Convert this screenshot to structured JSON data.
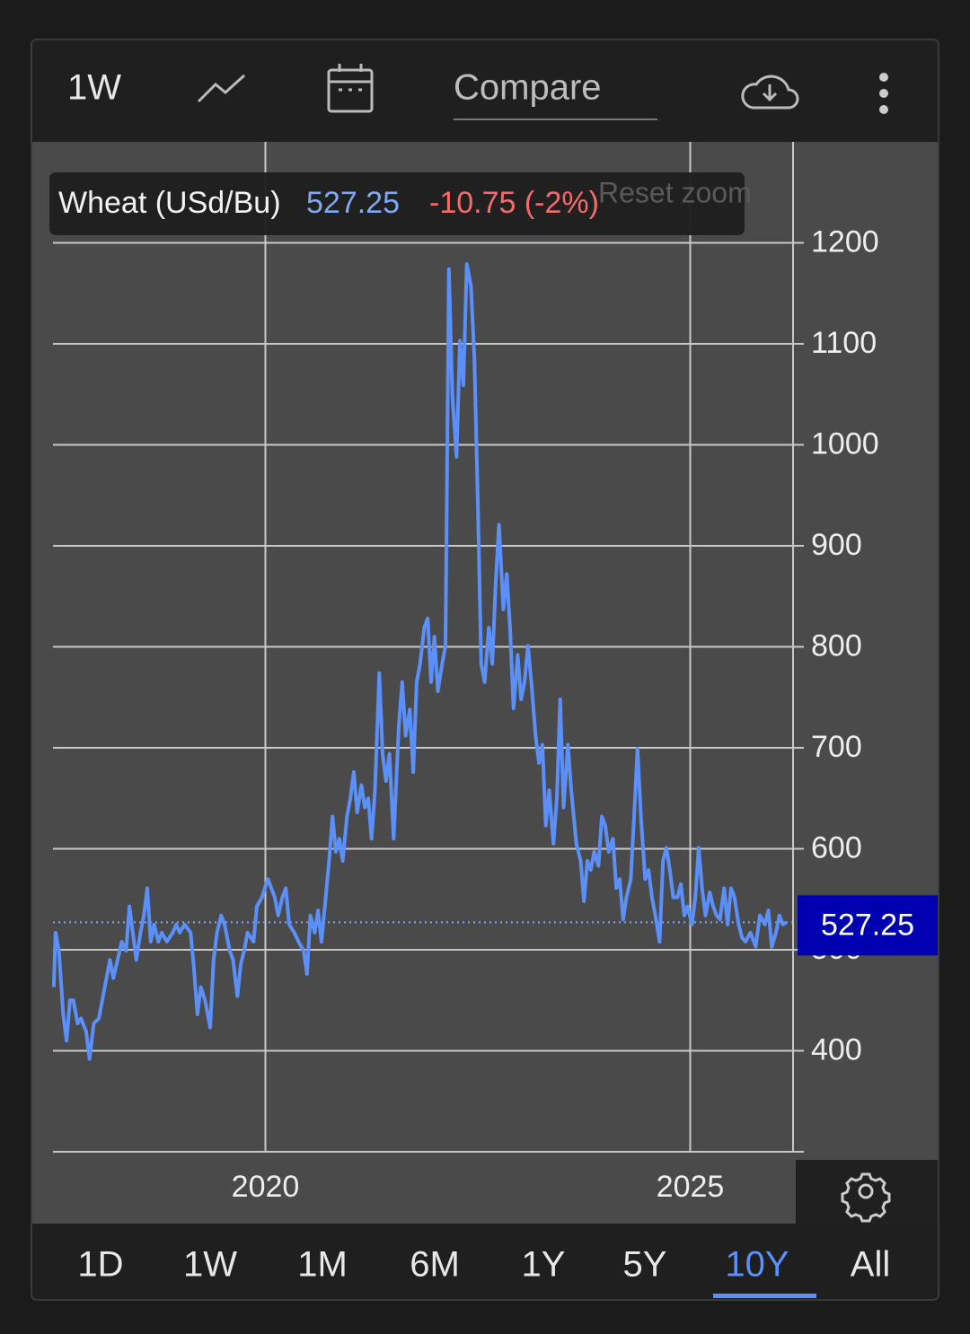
{
  "toolbar": {
    "interval": "1W",
    "compare": "Compare"
  },
  "chart_data": {
    "type": "line",
    "series": [
      {
        "name": "Wheat (USd/Bu)",
        "color": "#5b8ff9",
        "values": [
          463,
          517,
          499,
          436,
          410,
          450,
          450,
          427,
          432,
          419,
          392,
          427,
          432,
          459,
          490,
          472,
          486,
          508,
          499,
          543,
          517,
          490,
          517,
          534,
          561,
          508,
          525,
          508,
          517,
          508,
          517,
          525,
          517,
          525,
          517,
          481,
          436,
          463,
          450,
          423,
          490,
          517,
          534,
          525,
          499,
          490,
          454,
          486,
          499,
          517,
          508,
          543,
          552,
          570,
          561,
          552,
          534,
          552,
          561,
          525,
          517,
          508,
          499,
          476,
          534,
          517,
          539,
          508,
          543,
          588,
          632,
          597,
          610,
          588,
          632,
          650,
          676,
          636,
          663,
          641,
          650,
          610,
          658,
          774,
          694,
          667,
          694,
          610,
          721,
          765,
          712,
          738,
          676,
          765,
          783,
          819,
          828,
          765,
          810,
          756,
          783,
          801,
          1174,
          1050,
          988,
          1103,
          1059,
          1179,
          1157,
          1085,
          943,
          783,
          765,
          819,
          783,
          863,
          921,
          837,
          872,
          819,
          739,
          792,
          748,
          765,
          801,
          765,
          712,
          685,
          703,
          623,
          658,
          605,
          650,
          748,
          641,
          703,
          658,
          605,
          588,
          548,
          588,
          579,
          597,
          583,
          632,
          623,
          597,
          610,
          561,
          570,
          530,
          552,
          570,
          632,
          699,
          632,
          570,
          579,
          552,
          534,
          508,
          588,
          601,
          579,
          552,
          552,
          565,
          534,
          543,
          525,
          552,
          601,
          561,
          534,
          557,
          543,
          534,
          530,
          561,
          525,
          561,
          552,
          525,
          512,
          508,
          517,
          503,
          534,
          525,
          539,
          503,
          517,
          534,
          525,
          527.25
        ]
      }
    ],
    "x": [
      2017.51,
      2017.53,
      2017.57,
      2017.62,
      2017.66,
      2017.7,
      2017.74,
      2017.79,
      2017.83,
      2017.89,
      2017.93,
      2017.98,
      2018.04,
      2018.1,
      2018.17,
      2018.21,
      2018.25,
      2018.31,
      2018.36,
      2018.4,
      2018.44,
      2018.48,
      2018.53,
      2018.57,
      2018.61,
      2018.65,
      2018.69,
      2018.74,
      2018.78,
      2018.84,
      2018.91,
      2018.95,
      2018.99,
      2019.05,
      2019.12,
      2019.16,
      2019.2,
      2019.24,
      2019.29,
      2019.35,
      2019.39,
      2019.43,
      2019.48,
      2019.52,
      2019.58,
      2019.62,
      2019.67,
      2019.71,
      2019.75,
      2019.79,
      2019.86,
      2019.9,
      2019.96,
      2020.03,
      2020.07,
      2020.11,
      2020.15,
      2020.2,
      2020.24,
      2020.28,
      2020.34,
      2020.39,
      2020.45,
      2020.49,
      2020.53,
      2020.58,
      2020.62,
      2020.66,
      2020.7,
      2020.75,
      2020.79,
      2020.83,
      2020.87,
      2020.91,
      2020.96,
      2021.0,
      2021.04,
      2021.08,
      2021.13,
      2021.17,
      2021.21,
      2021.25,
      2021.29,
      2021.34,
      2021.38,
      2021.42,
      2021.46,
      2021.51,
      2021.57,
      2021.61,
      2021.65,
      2021.7,
      2021.74,
      2021.78,
      2021.82,
      2021.87,
      2021.91,
      2021.95,
      2021.99,
      2022.03,
      2022.08,
      2022.12,
      2022.16,
      2022.2,
      2022.25,
      2022.29,
      2022.33,
      2022.37,
      2022.42,
      2022.46,
      2022.5,
      2022.54,
      2022.58,
      2022.63,
      2022.67,
      2022.71,
      2022.75,
      2022.8,
      2022.84,
      2022.88,
      2022.92,
      2022.97,
      2023.01,
      2023.05,
      2023.09,
      2023.13,
      2023.18,
      2023.22,
      2023.26,
      2023.3,
      2023.34,
      2023.39,
      2023.43,
      2023.47,
      2023.51,
      2023.56,
      2023.6,
      2023.66,
      2023.71,
      2023.75,
      2023.79,
      2023.83,
      2023.87,
      2023.92,
      2023.96,
      2024.0,
      2024.04,
      2024.09,
      2024.13,
      2024.17,
      2024.21,
      2024.25,
      2024.3,
      2024.34,
      2024.38,
      2024.42,
      2024.47,
      2024.51,
      2024.55,
      2024.59,
      2024.64,
      2024.68,
      2024.72,
      2024.76,
      2024.8,
      2024.85,
      2024.89,
      2024.93,
      2024.97,
      2025.02,
      2025.06,
      2025.1,
      2025.14,
      2025.18,
      2025.23,
      2025.27,
      2025.31,
      2025.35,
      2025.4,
      2025.44,
      2025.48,
      2025.52,
      2025.57,
      2025.61,
      2025.65,
      2025.71,
      2025.77,
      2025.82,
      2025.88,
      2025.92,
      2025.96,
      2026.01,
      2026.05,
      2026.09,
      2026.13
    ],
    "xlim": [
      2017.5,
      2026.2
    ],
    "xticks": [
      2020,
      2025
    ],
    "ylim": [
      300,
      1300
    ],
    "yticks": [
      400,
      500,
      600,
      700,
      800,
      900,
      1000,
      1100,
      1200
    ],
    "grid": true,
    "last_price": 527.25,
    "last_price_color": "#0000b0",
    "change": "-10.75 (-2%)",
    "reset_zoom": "Reset zoom"
  },
  "ranges": [
    "1D",
    "1W",
    "1M",
    "6M",
    "1Y",
    "5Y",
    "10Y",
    "All"
  ],
  "active_range": "10Y"
}
